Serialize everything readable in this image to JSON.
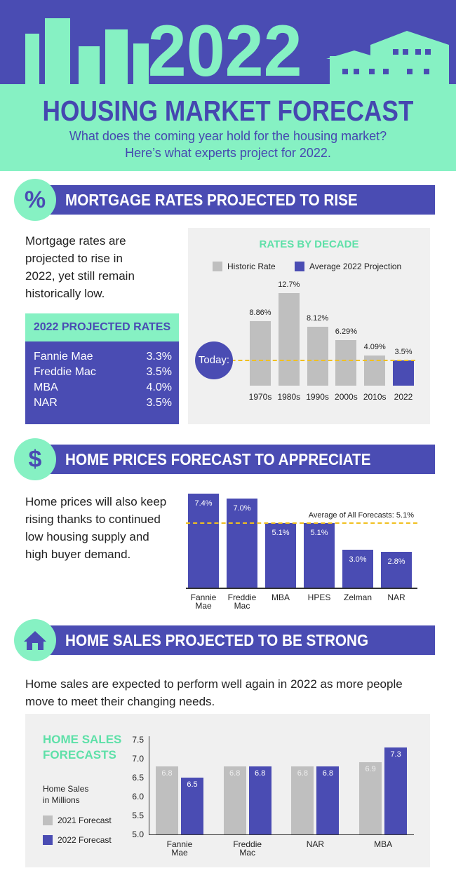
{
  "header": {
    "year": "2022",
    "title": "HOUSING MARKET FORECAST",
    "subtitle": [
      "What does the coming year hold for the housing market?",
      "Here’s what experts project for 2022."
    ]
  },
  "sections": [
    {
      "icon": "%",
      "heading": "MORTGAGE RATES PROJECTED TO RISE",
      "text": [
        "Mortgage rates are",
        "projected to rise in",
        "2022, yet still remain",
        "historically low."
      ]
    },
    {
      "icon": "$",
      "heading": "HOME PRICES FORECAST TO APPRECIATE",
      "text": [
        "Home prices will also keep",
        "rising thanks to continued",
        "low housing supply and",
        "high buyer demand."
      ]
    },
    {
      "heading": "HOME SALES PROJECTED TO BE STRONG",
      "text": [
        "Home sales are expected to perform well again in 2022 as more people",
        "move to meet their changing needs."
      ]
    }
  ],
  "table": {
    "title": "2022 PROJECTED RATES",
    "rows": [
      [
        "Fannie Mae",
        "3.3%"
      ],
      [
        "Freddie Mac",
        "3.5%"
      ],
      [
        "MBA",
        "4.0%"
      ],
      [
        "NAR",
        "3.5%"
      ]
    ]
  },
  "chart_data": [
    {
      "type": "bar",
      "title": "RATES BY DECADE",
      "categories": [
        "1970s",
        "1980s",
        "1990s",
        "2000s",
        "2010s",
        "2022"
      ],
      "series": [
        {
          "name": "Historic Rate",
          "color": "#bfbfbf",
          "values": [
            8.86,
            12.7,
            8.12,
            6.29,
            4.09,
            null
          ],
          "value_labels": [
            "8.86%",
            "12.7%",
            "8.12%",
            "6.29%",
            "4.09%",
            null
          ]
        },
        {
          "name": "Average 2022 Projection",
          "color": "#4a4cb3",
          "values": [
            null,
            null,
            null,
            null,
            null,
            3.5
          ],
          "value_labels": [
            null,
            null,
            null,
            null,
            null,
            "3.5%"
          ]
        }
      ],
      "reference_line": {
        "label": "Today:",
        "value": 3.5,
        "color": "#f0c020"
      }
    },
    {
      "type": "bar",
      "categories": [
        "Fannie Mae",
        "Freddie Mac",
        "MBA",
        "HPES",
        "Zelman",
        "NAR"
      ],
      "color": "#4a4cb3",
      "values": [
        7.4,
        7.0,
        5.1,
        5.1,
        3.0,
        2.8
      ],
      "value_labels": [
        "7.4%",
        "7.0%",
        "5.1%",
        "5.1%",
        "3.0%",
        "2.8%"
      ],
      "reference_line": {
        "label": "Average of All Forecasts: 5.1%",
        "value": 5.1,
        "color": "#f0c020"
      }
    },
    {
      "type": "grouped_bar",
      "title": "HOME SALES FORECASTS",
      "ylabel": "Home Sales in Millions",
      "categories": [
        "Fannie Mae",
        "Freddie Mac",
        "NAR",
        "MBA"
      ],
      "series": [
        {
          "name": "2021 Forecast",
          "color": "#bfbfbf",
          "values": [
            6.8,
            6.8,
            6.8,
            6.9
          ]
        },
        {
          "name": "2022 Forecast",
          "color": "#4a4cb3",
          "values": [
            6.5,
            6.8,
            6.8,
            7.3
          ]
        }
      ],
      "ylim": [
        5.0,
        7.5
      ],
      "yticks": [
        {
          "value": 5.0,
          "label": "5.0"
        },
        5.5,
        {
          "value": 6.0,
          "label": "6.0"
        },
        6.5,
        {
          "value": 7.0,
          "label": "7.0"
        },
        7.5
      ]
    }
  ]
}
